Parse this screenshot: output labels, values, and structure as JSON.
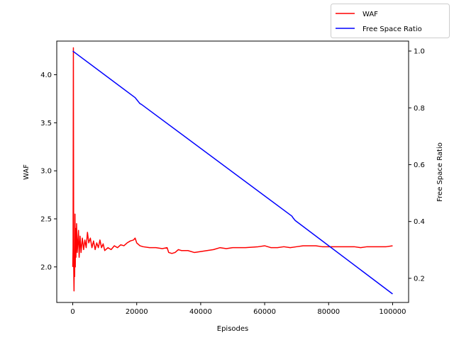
{
  "chart_data": {
    "type": "line",
    "title": "",
    "xlabel": "Episodes",
    "ylabel_left": "WAF",
    "ylabel_right": "Free Space Ratio",
    "xlim": [
      -5000,
      105000
    ],
    "ylim_left": [
      1.63,
      4.35
    ],
    "ylim_right": [
      0.115,
      1.035
    ],
    "xticks": [
      0,
      20000,
      40000,
      60000,
      80000,
      100000
    ],
    "xtick_labels": [
      "0",
      "20000",
      "40000",
      "60000",
      "80000",
      "100000"
    ],
    "yticks_left": [
      2.0,
      2.5,
      3.0,
      3.5,
      4.0
    ],
    "ytick_labels_left": [
      "2.0",
      "2.5",
      "3.0",
      "3.5",
      "4.0"
    ],
    "yticks_right": [
      0.2,
      0.4,
      0.6,
      0.8,
      1.0
    ],
    "ytick_labels_right": [
      "0.2",
      "0.4",
      "0.6",
      "0.8",
      "1.0"
    ],
    "grid": false,
    "legend_position": "top-right outside",
    "series": [
      {
        "name": "WAF",
        "color": "#ff0000",
        "axis": "left",
        "x": [
          0,
          100,
          200,
          300,
          400,
          500,
          600,
          700,
          800,
          900,
          1000,
          1200,
          1400,
          1600,
          1800,
          2000,
          2300,
          2600,
          3000,
          3400,
          3800,
          4200,
          4600,
          5000,
          5500,
          6000,
          6500,
          7000,
          7500,
          8000,
          8500,
          9000,
          9500,
          10000,
          11000,
          12000,
          13000,
          14000,
          15000,
          16000,
          17000,
          18000,
          19000,
          19500,
          20000,
          21000,
          22000,
          24000,
          26000,
          28000,
          29500,
          30000,
          31000,
          32000,
          33000,
          34000,
          36000,
          38000,
          40000,
          42000,
          44000,
          46000,
          48000,
          50000,
          54000,
          58000,
          60000,
          62000,
          64000,
          66000,
          68000,
          70000,
          72000,
          74000,
          76000,
          78000,
          80000,
          82000,
          84000,
          86000,
          88000,
          90000,
          92000,
          94000,
          96000,
          98000,
          100000
        ],
        "y": [
          2.0,
          2.2,
          4.28,
          2.0,
          1.75,
          2.1,
          1.9,
          2.55,
          2.0,
          2.4,
          2.1,
          2.45,
          2.15,
          2.25,
          2.38,
          2.1,
          2.32,
          2.15,
          2.3,
          2.18,
          2.28,
          2.2,
          2.36,
          2.25,
          2.3,
          2.2,
          2.27,
          2.18,
          2.25,
          2.2,
          2.28,
          2.2,
          2.24,
          2.17,
          2.2,
          2.18,
          2.22,
          2.2,
          2.23,
          2.22,
          2.25,
          2.27,
          2.28,
          2.3,
          2.25,
          2.22,
          2.21,
          2.2,
          2.2,
          2.19,
          2.2,
          2.15,
          2.14,
          2.15,
          2.18,
          2.17,
          2.17,
          2.15,
          2.16,
          2.17,
          2.18,
          2.2,
          2.19,
          2.2,
          2.2,
          2.21,
          2.22,
          2.2,
          2.2,
          2.21,
          2.2,
          2.21,
          2.22,
          2.22,
          2.22,
          2.21,
          2.21,
          2.21,
          2.21,
          2.21,
          2.21,
          2.2,
          2.21,
          2.21,
          2.21,
          2.21,
          2.22
        ]
      },
      {
        "name": "Free Space Ratio",
        "color": "#0000ff",
        "axis": "right",
        "x": [
          0,
          19500,
          20000,
          20500,
          21000,
          21500,
          68500,
          69000,
          69500,
          100000
        ],
        "y": [
          1.0,
          0.836,
          0.829,
          0.822,
          0.815,
          0.812,
          0.419,
          0.411,
          0.404,
          0.145
        ]
      }
    ]
  }
}
